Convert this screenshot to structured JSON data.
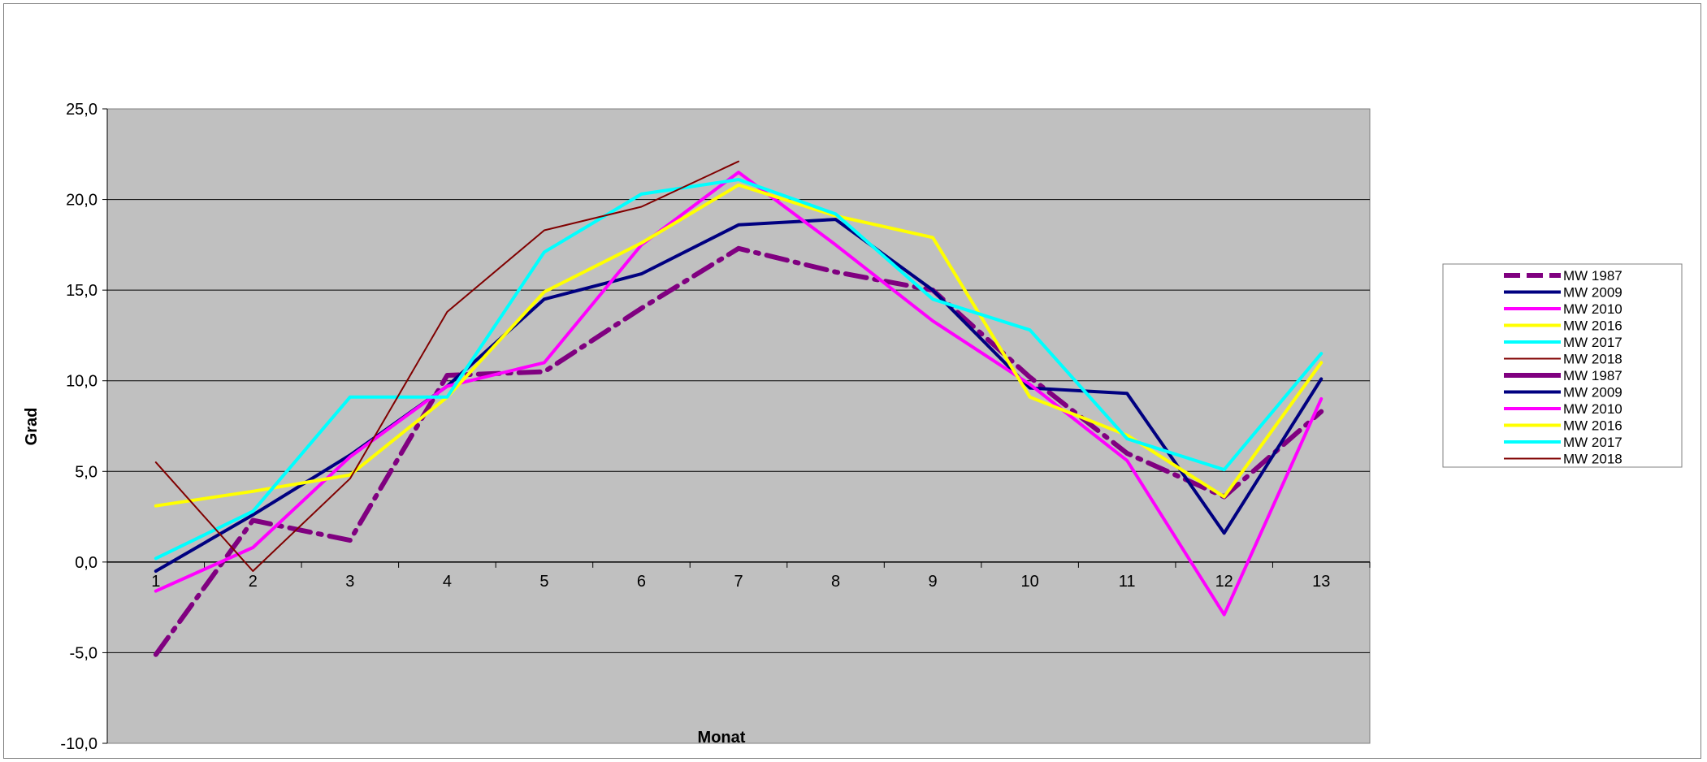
{
  "chart_data": {
    "type": "line",
    "xlabel": "Monat",
    "ylabel": "Grad",
    "x": [
      1,
      2,
      3,
      4,
      5,
      6,
      7,
      8,
      9,
      10,
      11,
      12,
      13
    ],
    "x_tick_labels": [
      "1",
      "2",
      "3",
      "4",
      "5",
      "6",
      "7",
      "8",
      "9",
      "10",
      "11",
      "12",
      "13"
    ],
    "ylim": [
      -10,
      25
    ],
    "y_ticks": [
      -10,
      -5,
      0,
      5,
      10,
      15,
      20,
      25
    ],
    "y_tick_labels": [
      "-10,0",
      "-5,0",
      "0,0",
      "5,0",
      "10,0",
      "15,0",
      "20,0",
      "25,0"
    ],
    "grid": "horizontal major gridlines",
    "legend_position": "right",
    "plot_background": "#c0c0c0",
    "series": [
      {
        "name": "MW 1987",
        "color": "#800080",
        "style": "dash-dot",
        "width": 6,
        "values": [
          -5.1,
          2.3,
          1.2,
          10.3,
          10.5,
          14.0,
          17.3,
          16.0,
          15.0,
          10.2,
          6.0,
          3.6,
          8.3
        ]
      },
      {
        "name": "MW 2009",
        "color": "#000080",
        "style": "solid",
        "width": 4,
        "values": [
          -0.5,
          2.6,
          5.9,
          9.7,
          14.5,
          15.9,
          18.6,
          18.9,
          15.0,
          9.6,
          9.3,
          1.6,
          10.1
        ]
      },
      {
        "name": "MW 2010",
        "color": "#ff00ff",
        "style": "solid",
        "width": 4,
        "values": [
          -1.6,
          0.8,
          5.8,
          9.7,
          11.0,
          17.5,
          21.5,
          17.5,
          13.3,
          9.8,
          5.6,
          -2.9,
          9.0
        ]
      },
      {
        "name": "MW 2016",
        "color": "#ffff00",
        "style": "solid",
        "width": 4,
        "values": [
          3.1,
          3.9,
          4.8,
          9.1,
          14.9,
          17.6,
          20.8,
          19.1,
          17.9,
          9.1,
          7.0,
          3.6,
          11.0
        ]
      },
      {
        "name": "MW 2017",
        "color": "#00ffff",
        "style": "solid",
        "width": 4,
        "values": [
          0.2,
          2.8,
          9.1,
          9.1,
          17.1,
          20.3,
          21.1,
          19.2,
          14.5,
          12.8,
          6.8,
          5.1,
          11.5
        ]
      },
      {
        "name": "MW 2018",
        "color": "#800000",
        "style": "solid",
        "width": 2,
        "values": [
          5.5,
          -0.5,
          4.6,
          13.8,
          18.3,
          19.6,
          22.1,
          null,
          null,
          null,
          null,
          null,
          null
        ]
      }
    ],
    "legend_entries": [
      {
        "name": "MW 1987",
        "color": "#800080",
        "style": "dash",
        "width": 6
      },
      {
        "name": "MW 2009",
        "color": "#000080",
        "style": "solid",
        "width": 4
      },
      {
        "name": "MW 2010",
        "color": "#ff00ff",
        "style": "solid",
        "width": 4
      },
      {
        "name": "MW 2016",
        "color": "#ffff00",
        "style": "solid",
        "width": 4
      },
      {
        "name": "MW 2017",
        "color": "#00ffff",
        "style": "solid",
        "width": 4
      },
      {
        "name": "MW 2018",
        "color": "#800000",
        "style": "solid",
        "width": 2
      },
      {
        "name": "MW 1987",
        "color": "#800080",
        "style": "solid",
        "width": 6
      },
      {
        "name": "MW 2009",
        "color": "#000080",
        "style": "solid",
        "width": 4
      },
      {
        "name": "MW 2010",
        "color": "#ff00ff",
        "style": "solid",
        "width": 4
      },
      {
        "name": "MW 2016",
        "color": "#ffff00",
        "style": "solid",
        "width": 4
      },
      {
        "name": "MW 2017",
        "color": "#00ffff",
        "style": "solid",
        "width": 4
      },
      {
        "name": "MW 2018",
        "color": "#800000",
        "style": "solid",
        "width": 2
      }
    ]
  }
}
